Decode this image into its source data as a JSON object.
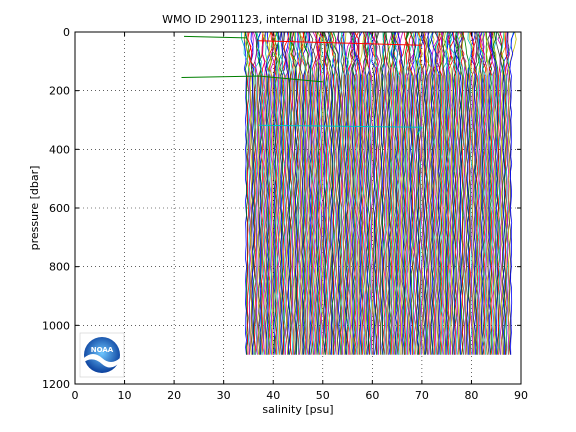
{
  "chart_data": {
    "type": "line",
    "title": "WMO ID 2901123, internal ID 3198, 21–Oct–2018",
    "xlabel": "salinity [psu]",
    "ylabel": "pressure [dbar]",
    "xlim": [
      0,
      90
    ],
    "ylim": [
      1200,
      0
    ],
    "y_reversed": true,
    "xticks": [
      0,
      10,
      20,
      30,
      40,
      50,
      60,
      70,
      80,
      90
    ],
    "yticks": [
      0,
      200,
      400,
      600,
      800,
      1000,
      1200
    ],
    "xtick_labels": [
      "0",
      "10",
      "20",
      "30",
      "40",
      "50",
      "60",
      "70",
      "80",
      "90"
    ],
    "ytick_labels": [
      "0",
      "200",
      "400",
      "600",
      "800",
      "1000",
      "1200"
    ],
    "grid": true,
    "grid_style": "dotted",
    "series_description": "Many overlapping salinity profiles; each profile is offset horizontally, filling the band from about 34.5 to 88 psu between 0 and 1100 dbar.",
    "profile_band": {
      "x_start": 34.5,
      "x_end": 88,
      "p_top": 0,
      "p_bottom": 1100,
      "count": 260
    },
    "outliers": [
      {
        "color": "#007f00",
        "points": [
          [
            22,
            15
          ],
          [
            34.5,
            20
          ]
        ]
      },
      {
        "color": "#007f00",
        "points": [
          [
            21.5,
            155
          ],
          [
            37,
            150
          ],
          [
            50,
            170
          ]
        ]
      },
      {
        "color": "#00bfbf",
        "points": [
          [
            37,
            318
          ],
          [
            70,
            325
          ],
          [
            69,
            350
          ]
        ]
      },
      {
        "color": "#ff0000",
        "points": [
          [
            37,
            30
          ],
          [
            70,
            45
          ]
        ]
      }
    ],
    "colors": [
      "#0000ff",
      "#007f00",
      "#ff0000",
      "#00bfbf",
      "#bf00bf",
      "#bfbf00",
      "#404040"
    ]
  },
  "logo": {
    "name": "noaa-logo",
    "text": "NOAA"
  }
}
